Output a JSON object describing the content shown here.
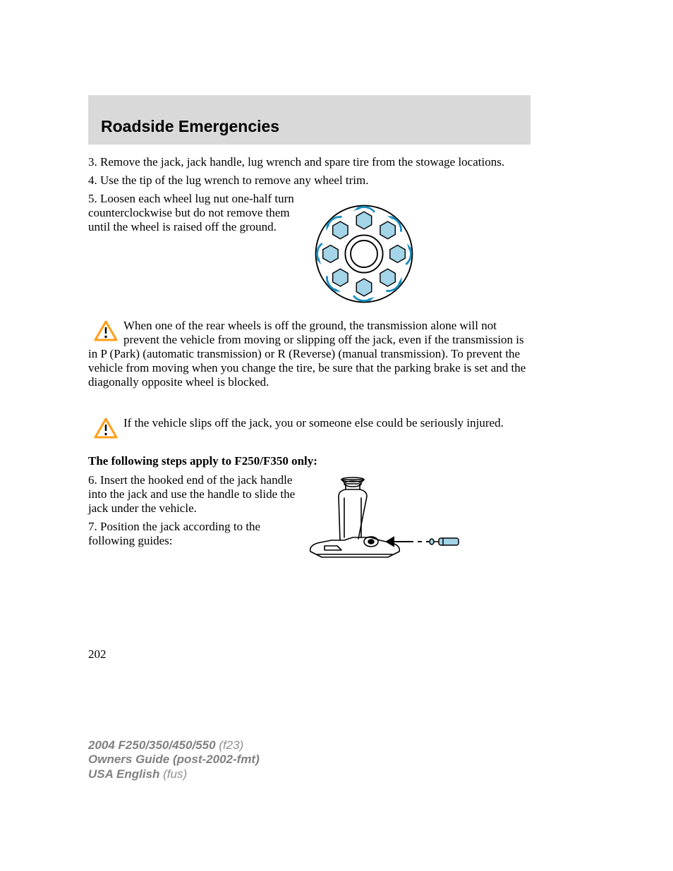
{
  "header": {
    "title": "Roadside Emergencies"
  },
  "steps": {
    "s3": "3. Remove the jack, jack handle, lug wrench and spare tire from the stowage locations.",
    "s4": "4. Use the tip of the lug wrench to remove any wheel trim.",
    "s5": "5. Loosen each wheel lug nut one-half turn counterclockwise but do not remove them until the wheel is raised off the ground.",
    "s6": "6. Insert the hooked end of the jack handle into the jack and use the handle to slide the jack under the vehicle.",
    "s7": "7. Position the jack according to the following guides:"
  },
  "warnings": {
    "w1": "When one of the rear wheels is off the ground, the transmission alone will not prevent the vehicle from moving or slipping off the jack, even if the transmission is in P (Park) (automatic transmission) or R (Reverse) (manual transmission). To prevent the vehicle from moving when you change the tire, be sure that the parking brake is set and the diagonally opposite wheel is blocked.",
    "w2": "If the vehicle slips off the jack, you or someone else could be seriously injured."
  },
  "subhead": "The following steps apply to F250/F350 only:",
  "pageNumber": "202",
  "footer": {
    "line1a": "2004 F250/350/450/550",
    "line1b": "(f23)",
    "line2": "Owners Guide (post-2002-fmt)",
    "line3a": "USA English",
    "line3b": "(fus)"
  },
  "colors": {
    "headerBg": "#d9d9d9",
    "text": "#000000",
    "footerGray": "#808080",
    "warningYellow": "#ff9e16",
    "nutFill": "#a3d4e8",
    "diagramStroke": "#000000"
  },
  "icons": {
    "warning": {
      "strokeWidth": 2,
      "size": 34
    }
  },
  "hubDiagram": {
    "outerRadius": 72,
    "innerRingOuter": 28,
    "innerRingInner": 20,
    "nutCircleRadius": 50,
    "nutSize": 13,
    "nutCount": 8,
    "arrowColor": "#1a8fbf",
    "nutFill": "#a3d4e8",
    "stroke": "#000000"
  },
  "jackDiagram": {
    "stroke": "#000000",
    "handleFill": "#a3d4e8"
  }
}
